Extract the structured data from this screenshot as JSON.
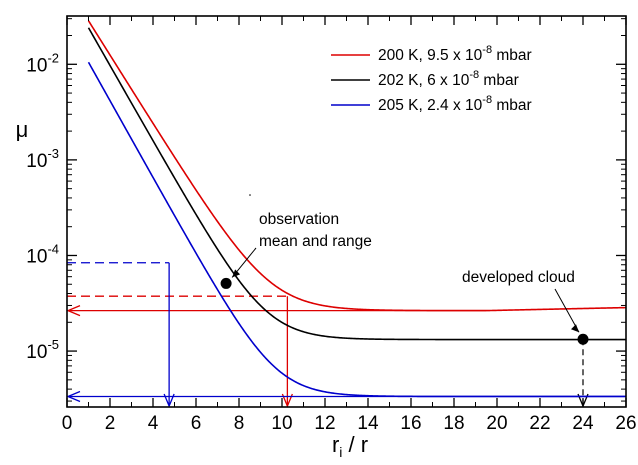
{
  "chart_data": {
    "type": "line",
    "xlabel_main": "r",
    "xlabel_sub": "i",
    "xlabel_rest": " / r",
    "ylabel": "μ",
    "xlim": [
      0,
      26
    ],
    "ylim": [
      2.6e-06,
      0.032
    ],
    "y_scale": "log",
    "x_ticks": [
      0,
      2,
      4,
      6,
      8,
      10,
      12,
      14,
      16,
      18,
      20,
      22,
      24,
      26
    ],
    "y_ticks": [
      {
        "base": "10",
        "exp": "-5",
        "value": 1e-05
      },
      {
        "base": "10",
        "exp": "-4",
        "value": 0.0001
      },
      {
        "base": "10",
        "exp": "-3",
        "value": 0.001
      },
      {
        "base": "10",
        "exp": "-2",
        "value": 0.01
      }
    ],
    "legend_position": "top-right",
    "series": [
      {
        "name": "200 K, 9.5 x 10",
        "name_exp": "-8",
        "name_tail": " mbar",
        "color": "#dd0000",
        "plateau": 2.65e-05,
        "amp": 0.0285,
        "tau": 1.21,
        "x_start": 1.0,
        "x_end": 26,
        "rise_after": 19.5,
        "end_value": 2.85e-05
      },
      {
        "name": "202 K, 6 x 10",
        "name_exp": "-8",
        "name_tail": " mbar",
        "color": "#000000",
        "plateau": 1.32e-05,
        "amp": 0.0241,
        "tau": 1.1,
        "x_start": 1.0,
        "x_end": 26
      },
      {
        "name": "205 K, 2.4 x 10",
        "name_exp": "-8",
        "name_tail": " mbar",
        "color": "#0000cc",
        "plateau": 3.35e-06,
        "amp": 0.0105,
        "tau": 1.08,
        "x_start": 1.0,
        "x_end": 26
      }
    ],
    "points": [
      {
        "x": 7.4,
        "y": 5.1e-05
      },
      {
        "x": 24.0,
        "y": 1.33e-05
      }
    ],
    "annotations": {
      "observation_line1": "observation",
      "observation_line2": "mean and range",
      "developed_cloud": "developed cloud"
    },
    "guides": {
      "red": {
        "y_obs": 3.75e-05,
        "x_obs": 10.25,
        "y_plateau": 2.65e-05,
        "color": "#dd0000"
      },
      "blue": {
        "y_obs": 8.4e-05,
        "x_obs": 4.75,
        "y_plateau": 3.35e-06,
        "color": "#0000cc"
      },
      "black": {
        "x": 24.0,
        "y": 1.33e-05,
        "color": "#000000"
      }
    }
  }
}
